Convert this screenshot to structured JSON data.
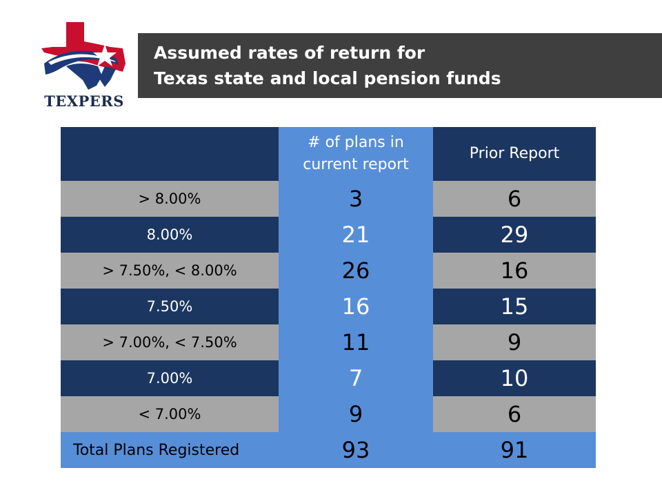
{
  "logo": {
    "text": "TEXPERS",
    "icon": "texas-map-star-icon",
    "colors": {
      "red": "#c8102e",
      "blue": "#1e3a78",
      "navy": "#1e2c4d"
    }
  },
  "title": {
    "line1": "Assumed rates of return for",
    "line2": "Texas state and local pension funds"
  },
  "table": {
    "headers": [
      "",
      "# of plans in current report",
      "Prior Report"
    ],
    "rows": [
      {
        "label": "> 8.00%",
        "current": "3",
        "prior": "6"
      },
      {
        "label": "8.00%",
        "current": "21",
        "prior": "29"
      },
      {
        "label": "> 7.50%, < 8.00%",
        "current": "26",
        "prior": "16"
      },
      {
        "label": "7.50%",
        "current": "16",
        "prior": "15"
      },
      {
        "label": "> 7.00%, < 7.50%",
        "current": "11",
        "prior": "9"
      },
      {
        "label": "7.00%",
        "current": "7",
        "prior": "10"
      },
      {
        "label": "< 7.00%",
        "current": "9",
        "prior": "6"
      }
    ],
    "total": {
      "label": "Total Plans Registered",
      "current": "93",
      "prior": "91"
    },
    "colors": {
      "navy": "#1b3660",
      "blue": "#578ed8",
      "gray": "#a6a6a6",
      "title_bar": "#3f3f3f"
    }
  }
}
